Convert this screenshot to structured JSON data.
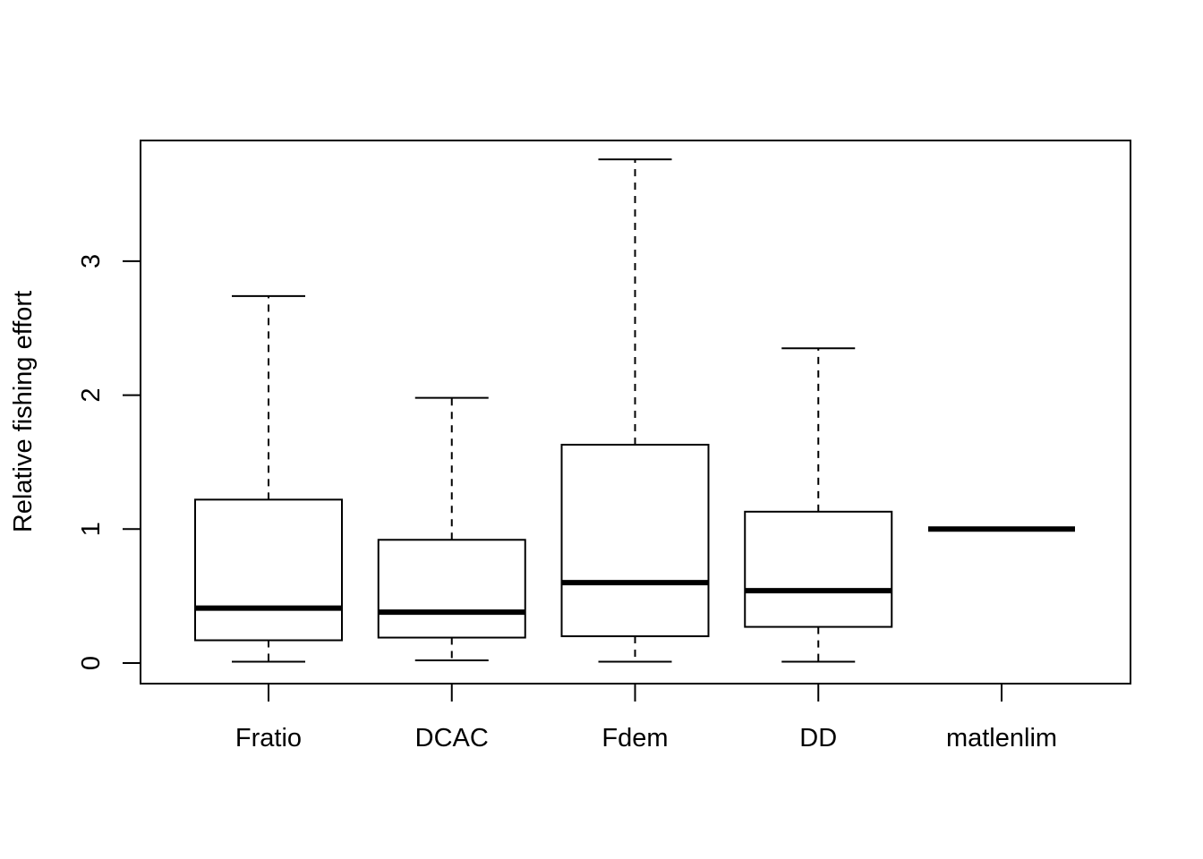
{
  "chart_data": {
    "type": "boxplot",
    "title": "",
    "xlabel": "",
    "ylabel": "Relative fishing effort",
    "ylim": [
      -0.15,
      3.9
    ],
    "yticks": [
      0,
      1,
      2,
      3
    ],
    "ytick_labels": [
      "0",
      "1",
      "2",
      "3"
    ],
    "grid": false,
    "categories": [
      "Fratio",
      "DCAC",
      "Fdem",
      "DD",
      "matlenlim"
    ],
    "boxes": [
      {
        "label": "Fratio",
        "min": 0.01,
        "q1": 0.17,
        "median": 0.41,
        "q3": 1.22,
        "max": 2.74
      },
      {
        "label": "DCAC",
        "min": 0.02,
        "q1": 0.19,
        "median": 0.38,
        "q3": 0.92,
        "max": 1.98
      },
      {
        "label": "Fdem",
        "min": 0.01,
        "q1": 0.2,
        "median": 0.6,
        "q3": 1.63,
        "max": 3.76
      },
      {
        "label": "DD",
        "min": 0.01,
        "q1": 0.27,
        "median": 0.54,
        "q3": 1.13,
        "max": 2.35
      },
      {
        "label": "matlenlim",
        "min": 1.0,
        "q1": 1.0,
        "median": 1.0,
        "q3": 1.0,
        "max": 1.0
      }
    ],
    "colors": {
      "box_fill": "#ffffff",
      "stroke": "#000000"
    }
  }
}
